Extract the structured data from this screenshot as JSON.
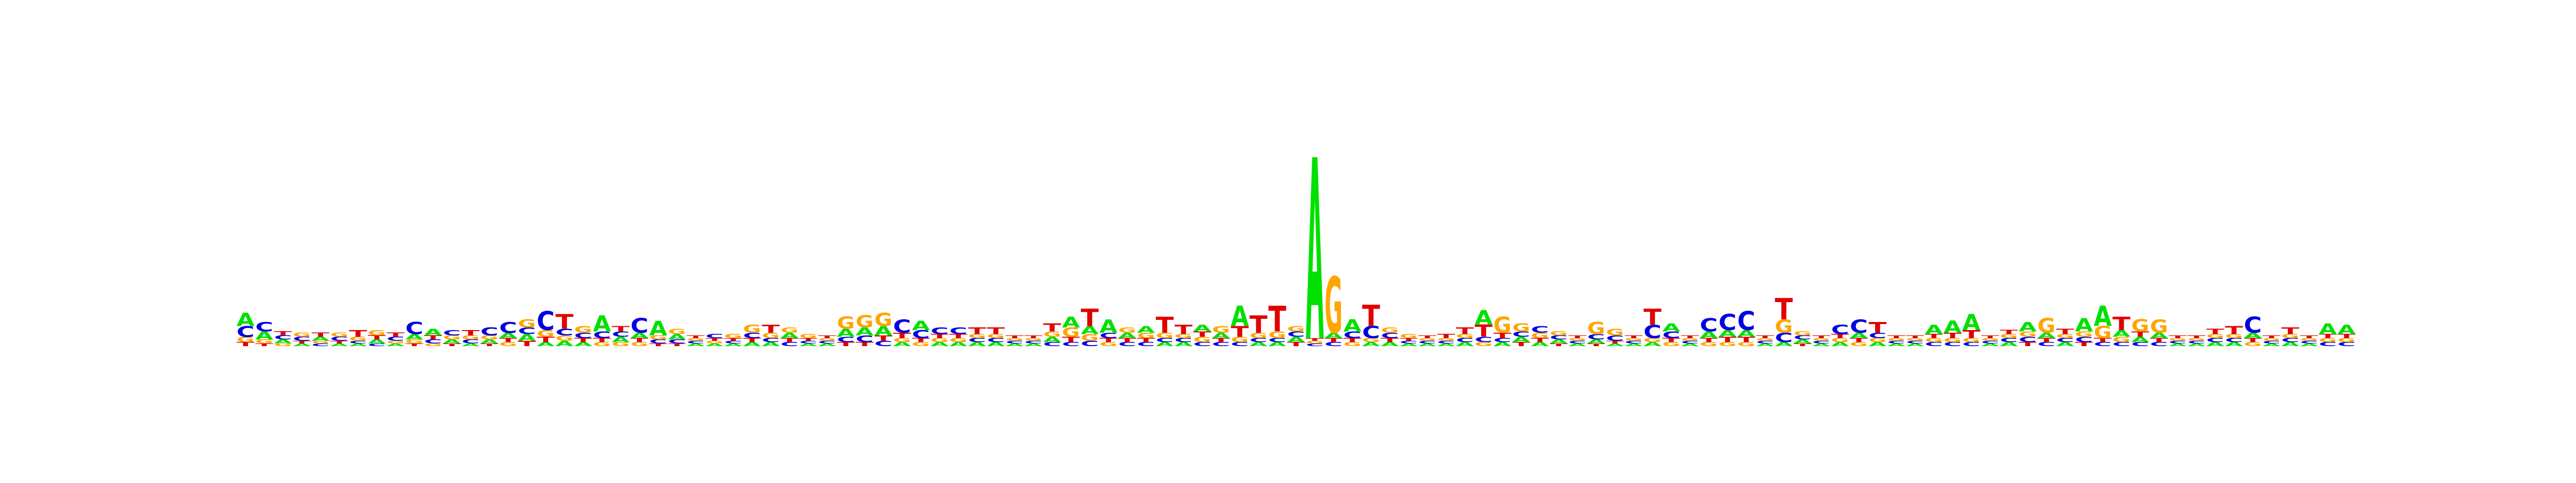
{
  "chart_data": {
    "type": "sequence-logo",
    "alphabet": [
      "A",
      "C",
      "G",
      "T"
    ],
    "colors": {
      "A": "#00e000",
      "C": "#0000e0",
      "G": "#ffa500",
      "T": "#e00000"
    },
    "ylim": [
      0,
      1.5
    ],
    "positions": [
      {
        "A": 0.1,
        "C": 0.08,
        "G": 0.04,
        "T": 0.03
      },
      {
        "A": 0.06,
        "C": 0.07,
        "G": 0.03,
        "T": 0.02
      },
      {
        "A": 0.03,
        "C": 0.03,
        "G": 0.02,
        "T": 0.03
      },
      {
        "A": 0.02,
        "C": 0.03,
        "G": 0.03,
        "T": 0.02
      },
      {
        "A": 0.03,
        "C": 0.02,
        "G": 0.02,
        "T": 0.03
      },
      {
        "A": 0.02,
        "C": 0.03,
        "G": 0.03,
        "T": 0.02
      },
      {
        "A": 0.02,
        "C": 0.02,
        "G": 0.03,
        "T": 0.05
      },
      {
        "A": 0.03,
        "C": 0.02,
        "G": 0.04,
        "T": 0.03
      },
      {
        "A": 0.02,
        "C": 0.03,
        "G": 0.02,
        "T": 0.03
      },
      {
        "A": 0.04,
        "C": 0.09,
        "G": 0.03,
        "T": 0.02
      },
      {
        "A": 0.05,
        "C": 0.03,
        "G": 0.02,
        "T": 0.03
      },
      {
        "A": 0.03,
        "C": 0.04,
        "G": 0.03,
        "T": 0.02
      },
      {
        "A": 0.02,
        "C": 0.03,
        "G": 0.03,
        "T": 0.04
      },
      {
        "A": 0.03,
        "C": 0.06,
        "G": 0.03,
        "T": 0.02
      },
      {
        "A": 0.04,
        "C": 0.08,
        "G": 0.03,
        "T": 0.03
      },
      {
        "A": 0.05,
        "C": 0.05,
        "G": 0.06,
        "T": 0.04
      },
      {
        "A": 0.03,
        "C": 0.14,
        "G": 0.05,
        "T": 0.04
      },
      {
        "A": 0.04,
        "C": 0.05,
        "G": 0.04,
        "T": 0.11
      },
      {
        "A": 0.03,
        "C": 0.04,
        "G": 0.05,
        "T": 0.03
      },
      {
        "A": 0.12,
        "C": 0.05,
        "G": 0.03,
        "T": 0.03
      },
      {
        "A": 0.04,
        "C": 0.04,
        "G": 0.03,
        "T": 0.04
      },
      {
        "A": 0.04,
        "C": 0.11,
        "G": 0.03,
        "T": 0.03
      },
      {
        "A": 0.11,
        "C": 0.03,
        "G": 0.03,
        "T": 0.02
      },
      {
        "A": 0.04,
        "C": 0.03,
        "G": 0.04,
        "T": 0.02
      },
      {
        "A": 0.02,
        "C": 0.02,
        "G": 0.02,
        "T": 0.02
      },
      {
        "A": 0.02,
        "C": 0.03,
        "G": 0.02,
        "T": 0.02
      },
      {
        "A": 0.02,
        "C": 0.02,
        "G": 0.03,
        "T": 0.02
      },
      {
        "A": 0.03,
        "C": 0.04,
        "G": 0.06,
        "T": 0.03
      },
      {
        "A": 0.03,
        "C": 0.03,
        "G": 0.04,
        "T": 0.06
      },
      {
        "A": 0.04,
        "C": 0.03,
        "G": 0.04,
        "T": 0.03
      },
      {
        "A": 0.02,
        "C": 0.02,
        "G": 0.03,
        "T": 0.02
      },
      {
        "A": 0.02,
        "C": 0.02,
        "G": 0.02,
        "T": 0.02
      },
      {
        "A": 0.06,
        "C": 0.04,
        "G": 0.09,
        "T": 0.03
      },
      {
        "A": 0.06,
        "C": 0.05,
        "G": 0.09,
        "T": 0.03
      },
      {
        "A": 0.07,
        "C": 0.04,
        "G": 0.1,
        "T": 0.04
      },
      {
        "A": 0.03,
        "C": 0.1,
        "G": 0.03,
        "T": 0.04
      },
      {
        "A": 0.07,
        "C": 0.06,
        "G": 0.03,
        "T": 0.03
      },
      {
        "A": 0.03,
        "C": 0.05,
        "G": 0.03,
        "T": 0.03
      },
      {
        "A": 0.03,
        "C": 0.05,
        "G": 0.03,
        "T": 0.03
      },
      {
        "A": 0.03,
        "C": 0.03,
        "G": 0.03,
        "T": 0.05
      },
      {
        "A": 0.03,
        "C": 0.03,
        "G": 0.03,
        "T": 0.05
      },
      {
        "A": 0.02,
        "C": 0.02,
        "G": 0.02,
        "T": 0.02
      },
      {
        "A": 0.02,
        "C": 0.02,
        "G": 0.02,
        "T": 0.02
      },
      {
        "A": 0.04,
        "C": 0.03,
        "G": 0.04,
        "T": 0.06
      },
      {
        "A": 0.08,
        "C": 0.03,
        "G": 0.07,
        "T": 0.04
      },
      {
        "A": 0.06,
        "C": 0.04,
        "G": 0.05,
        "T": 0.13
      },
      {
        "A": 0.1,
        "C": 0.04,
        "G": 0.03,
        "T": 0.03
      },
      {
        "A": 0.04,
        "C": 0.03,
        "G": 0.04,
        "T": 0.03
      },
      {
        "A": 0.05,
        "C": 0.03,
        "G": 0.04,
        "T": 0.03
      },
      {
        "A": 0.03,
        "C": 0.03,
        "G": 0.04,
        "T": 0.12
      },
      {
        "A": 0.03,
        "C": 0.03,
        "G": 0.03,
        "T": 0.07
      },
      {
        "A": 0.05,
        "C": 0.03,
        "G": 0.04,
        "T": 0.04
      },
      {
        "A": 0.04,
        "C": 0.03,
        "G": 0.05,
        "T": 0.03
      },
      {
        "A": 0.15,
        "C": 0.03,
        "G": 0.04,
        "T": 0.08
      },
      {
        "A": 0.03,
        "C": 0.03,
        "G": 0.04,
        "T": 0.13
      },
      {
        "A": 0.03,
        "C": 0.03,
        "G": 0.05,
        "T": 0.19
      },
      {
        "A": 0.04,
        "C": 0.04,
        "G": 0.04,
        "T": 0.03
      },
      {
        "A": 1.35,
        "C": 0.02,
        "G": 0.02,
        "T": 0.02
      },
      {
        "A": 0.04,
        "C": 0.03,
        "G": 0.42,
        "T": 0.03
      },
      {
        "A": 0.09,
        "C": 0.05,
        "G": 0.03,
        "T": 0.03
      },
      {
        "A": 0.03,
        "C": 0.09,
        "G": 0.03,
        "T": 0.16
      },
      {
        "A": 0.03,
        "C": 0.04,
        "G": 0.04,
        "T": 0.03
      },
      {
        "A": 0.02,
        "C": 0.02,
        "G": 0.03,
        "T": 0.02
      },
      {
        "A": 0.02,
        "C": 0.02,
        "G": 0.02,
        "T": 0.02
      },
      {
        "A": 0.02,
        "C": 0.02,
        "G": 0.02,
        "T": 0.03
      },
      {
        "A": 0.03,
        "C": 0.03,
        "G": 0.03,
        "T": 0.05
      },
      {
        "A": 0.11,
        "C": 0.04,
        "G": 0.03,
        "T": 0.09
      },
      {
        "A": 0.03,
        "C": 0.03,
        "G": 0.12,
        "T": 0.04
      },
      {
        "A": 0.04,
        "C": 0.04,
        "G": 0.06,
        "T": 0.03
      },
      {
        "A": 0.03,
        "C": 0.05,
        "G": 0.04,
        "T": 0.03
      },
      {
        "A": 0.03,
        "C": 0.03,
        "G": 0.03,
        "T": 0.02
      },
      {
        "A": 0.02,
        "C": 0.02,
        "G": 0.02,
        "T": 0.02
      },
      {
        "A": 0.03,
        "C": 0.04,
        "G": 0.09,
        "T": 0.02
      },
      {
        "A": 0.02,
        "C": 0.04,
        "G": 0.05,
        "T": 0.02
      },
      {
        "A": 0.02,
        "C": 0.02,
        "G": 0.02,
        "T": 0.02
      },
      {
        "A": 0.03,
        "C": 0.1,
        "G": 0.03,
        "T": 0.12
      },
      {
        "A": 0.06,
        "C": 0.05,
        "G": 0.03,
        "T": 0.03
      },
      {
        "A": 0.02,
        "C": 0.02,
        "G": 0.02,
        "T": 0.02
      },
      {
        "A": 0.05,
        "C": 0.1,
        "G": 0.03,
        "T": 0.03
      },
      {
        "A": 0.05,
        "C": 0.12,
        "G": 0.03,
        "T": 0.04
      },
      {
        "A": 0.05,
        "C": 0.14,
        "G": 0.03,
        "T": 0.04
      },
      {
        "A": 0.02,
        "C": 0.02,
        "G": 0.02,
        "T": 0.02
      },
      {
        "A": 0.03,
        "C": 0.07,
        "G": 0.1,
        "T": 0.16
      },
      {
        "A": 0.03,
        "C": 0.03,
        "G": 0.03,
        "T": 0.02
      },
      {
        "A": 0.02,
        "C": 0.02,
        "G": 0.02,
        "T": 0.02
      },
      {
        "A": 0.03,
        "C": 0.07,
        "G": 0.03,
        "T": 0.03
      },
      {
        "A": 0.04,
        "C": 0.1,
        "G": 0.03,
        "T": 0.03
      },
      {
        "A": 0.03,
        "C": 0.04,
        "G": 0.03,
        "T": 0.08
      },
      {
        "A": 0.02,
        "C": 0.02,
        "G": 0.02,
        "T": 0.02
      },
      {
        "A": 0.02,
        "C": 0.02,
        "G": 0.02,
        "T": 0.02
      },
      {
        "A": 0.07,
        "C": 0.03,
        "G": 0.03,
        "T": 0.03
      },
      {
        "A": 0.09,
        "C": 0.03,
        "G": 0.03,
        "T": 0.04
      },
      {
        "A": 0.12,
        "C": 0.03,
        "G": 0.03,
        "T": 0.06
      },
      {
        "A": 0.02,
        "C": 0.02,
        "G": 0.02,
        "T": 0.02
      },
      {
        "A": 0.03,
        "C": 0.03,
        "G": 0.03,
        "T": 0.03
      },
      {
        "A": 0.07,
        "C": 0.04,
        "G": 0.04,
        "T": 0.03
      },
      {
        "A": 0.04,
        "C": 0.03,
        "G": 0.11,
        "T": 0.03
      },
      {
        "A": 0.03,
        "C": 0.03,
        "G": 0.03,
        "T": 0.04
      },
      {
        "A": 0.1,
        "C": 0.04,
        "G": 0.04,
        "T": 0.03
      },
      {
        "A": 0.15,
        "C": 0.03,
        "G": 0.09,
        "T": 0.03
      },
      {
        "A": 0.05,
        "C": 0.03,
        "G": 0.04,
        "T": 0.1
      },
      {
        "A": 0.04,
        "C": 0.03,
        "G": 0.09,
        "T": 0.04
      },
      {
        "A": 0.04,
        "C": 0.03,
        "G": 0.1,
        "T": 0.03
      },
      {
        "A": 0.02,
        "C": 0.02,
        "G": 0.02,
        "T": 0.02
      },
      {
        "A": 0.02,
        "C": 0.02,
        "G": 0.02,
        "T": 0.02
      },
      {
        "A": 0.03,
        "C": 0.03,
        "G": 0.03,
        "T": 0.04
      },
      {
        "A": 0.03,
        "C": 0.03,
        "G": 0.03,
        "T": 0.06
      },
      {
        "A": 0.04,
        "C": 0.12,
        "G": 0.03,
        "T": 0.03
      },
      {
        "A": 0.02,
        "C": 0.02,
        "G": 0.02,
        "T": 0.02
      },
      {
        "A": 0.03,
        "C": 0.03,
        "G": 0.03,
        "T": 0.05
      },
      {
        "A": 0.02,
        "C": 0.02,
        "G": 0.02,
        "T": 0.02
      },
      {
        "A": 0.08,
        "C": 0.03,
        "G": 0.03,
        "T": 0.03
      },
      {
        "A": 0.07,
        "C": 0.03,
        "G": 0.03,
        "T": 0.03
      }
    ]
  }
}
